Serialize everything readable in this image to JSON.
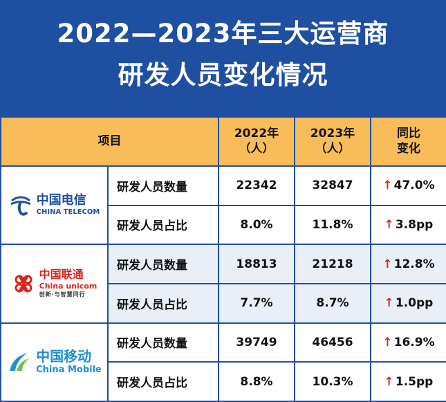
{
  "title": {
    "line1": "2022—2023年三大运营商",
    "line2": "研发人员变化情况"
  },
  "table": {
    "headers": {
      "item": "项目",
      "y2022": "2022年\n（人）",
      "y2023": "2023年\n（人）",
      "change": "同比\n变化"
    },
    "operators": [
      {
        "logo_zh": "中国电信",
        "logo_en": "CHINA TELECOM",
        "logo_sub": "",
        "rows": [
          {
            "metric": "研发人员数量",
            "v2022": "22342",
            "v2023": "32847",
            "change": "47.0%"
          },
          {
            "metric": "研发人员占比",
            "v2022": "8.0%",
            "v2023": "11.8%",
            "change": "3.8pp"
          }
        ]
      },
      {
        "logo_zh": "中国联通",
        "logo_en": "China unicom",
        "logo_sub": "创新·与智慧同行",
        "rows": [
          {
            "metric": "研发人员数量",
            "v2022": "18813",
            "v2023": "21218",
            "change": "12.8%"
          },
          {
            "metric": "研发人员占比",
            "v2022": "7.7%",
            "v2023": "8.7%",
            "change": "1.0pp"
          }
        ]
      },
      {
        "logo_zh": "中国移动",
        "logo_en": "China Mobile",
        "logo_sub": "",
        "rows": [
          {
            "metric": "研发人员数量",
            "v2022": "39749",
            "v2023": "46456",
            "change": "16.9%"
          },
          {
            "metric": "研发人员占比",
            "v2022": "8.8%",
            "v2023": "10.3%",
            "change": "1.5pp"
          }
        ]
      }
    ]
  },
  "colors": {
    "frame_blue": "#1f4fa1",
    "header_orange": "#f8bd59",
    "arrow_red": "#d9261c",
    "band_light": "#e9eef7"
  },
  "icons": {
    "up": "up-arrow-icon",
    "telecom_logo": "china-telecom-logo-icon",
    "unicom_logo": "china-unicom-knot-logo-icon",
    "mobile_logo": "china-mobile-logo-icon"
  }
}
